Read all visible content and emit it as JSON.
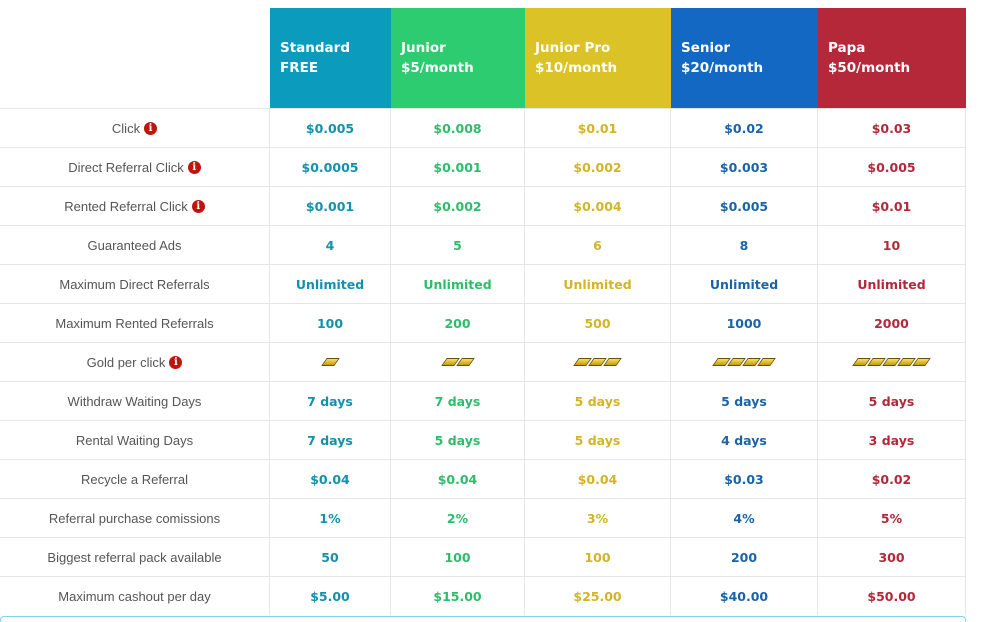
{
  "plans": [
    {
      "name": "Standard",
      "price": "FREE",
      "bg": "#0b9cbd",
      "fg": "#1490ad"
    },
    {
      "name": "Junior",
      "price": "$5/month",
      "bg": "#2ecc71",
      "fg": "#2dbd6a"
    },
    {
      "name": "Junior Pro",
      "price": "$10/month",
      "bg": "#dbc226",
      "fg": "#d4b427"
    },
    {
      "name": "Senior",
      "price": "$20/month",
      "bg": "#1268c2",
      "fg": "#1a63a9"
    },
    {
      "name": "Papa",
      "price": "$50/month",
      "bg": "#b4283a",
      "fg": "#b2283a"
    }
  ],
  "rows": [
    {
      "label": "Click",
      "info": true,
      "values": [
        "$0.005",
        "$0.008",
        "$0.01",
        "$0.02",
        "$0.03"
      ]
    },
    {
      "label": "Direct Referral Click",
      "info": true,
      "values": [
        "$0.0005",
        "$0.001",
        "$0.002",
        "$0.003",
        "$0.005"
      ]
    },
    {
      "label": "Rented Referral Click",
      "info": true,
      "values": [
        "$0.001",
        "$0.002",
        "$0.004",
        "$0.005",
        "$0.01"
      ]
    },
    {
      "label": "Guaranteed Ads",
      "info": false,
      "values": [
        "4",
        "5",
        "6",
        "8",
        "10"
      ]
    },
    {
      "label": "Maximum Direct Referrals",
      "info": false,
      "values": [
        "Unlimited",
        "Unlimited",
        "Unlimited",
        "Unlimited",
        "Unlimited"
      ]
    },
    {
      "label": "Maximum Rented Referrals",
      "info": false,
      "values": [
        "100",
        "200",
        "500",
        "1000",
        "2000"
      ]
    },
    {
      "label": "Gold per click",
      "info": true,
      "gold": [
        1,
        2,
        3,
        4,
        5
      ],
      "icon": "gold-bar-icon"
    },
    {
      "label": "Withdraw Waiting Days",
      "info": false,
      "values": [
        "7 days",
        "7 days",
        "5 days",
        "5 days",
        "5 days"
      ]
    },
    {
      "label": "Rental Waiting Days",
      "info": false,
      "values": [
        "7 days",
        "5 days",
        "5 days",
        "4 days",
        "3 days"
      ]
    },
    {
      "label": "Recycle a Referral",
      "info": false,
      "values": [
        "$0.04",
        "$0.04",
        "$0.04",
        "$0.03",
        "$0.02"
      ]
    },
    {
      "label": "Referral purchase comissions",
      "info": false,
      "values": [
        "1%",
        "2%",
        "3%",
        "4%",
        "5%"
      ]
    },
    {
      "label": "Biggest referral pack available",
      "info": false,
      "values": [
        "50",
        "100",
        "100",
        "200",
        "300"
      ]
    },
    {
      "label": "Maximum cashout per day",
      "info": false,
      "values": [
        "$5.00",
        "$15.00",
        "$25.00",
        "$40.00",
        "$50.00"
      ]
    }
  ],
  "info_icon": {
    "name": "info-icon",
    "glyph": "i"
  }
}
